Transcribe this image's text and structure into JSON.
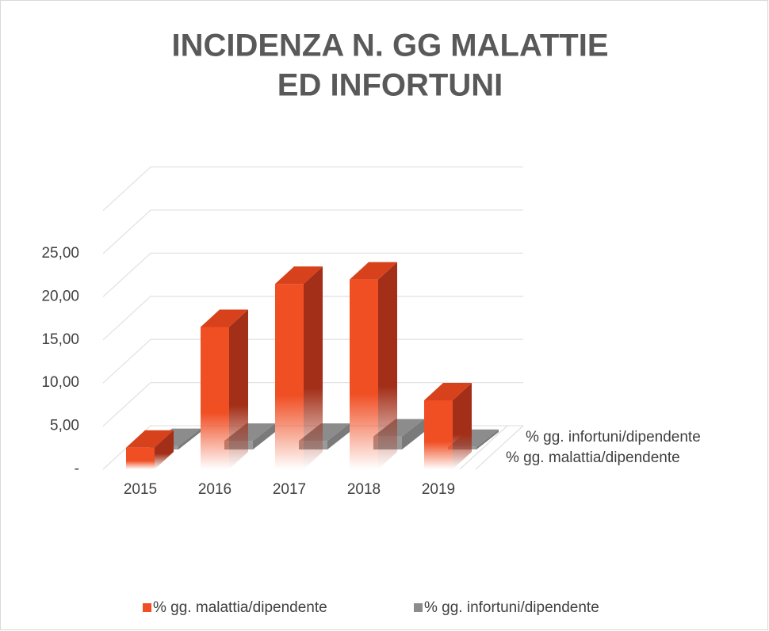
{
  "chart_data": {
    "type": "bar3d",
    "title": [
      "INCIDENZA N. GG MALATTIE",
      "ED INFORTUNI"
    ],
    "categories": [
      "2015",
      "2016",
      "2017",
      "2018",
      "2019"
    ],
    "series": [
      {
        "name": "% gg. malattia/dipendente",
        "color": "#f04e23",
        "values": [
          2.5,
          16.5,
          21.5,
          22.0,
          8.0
        ]
      },
      {
        "name": "% gg. infortuni/dipendente",
        "color": "#8c8c8c",
        "values": [
          0.4,
          1.0,
          1.0,
          1.5,
          0.3
        ]
      }
    ],
    "ylim": [
      0,
      30
    ],
    "yticks": [
      {
        "value": 0,
        "label": "-"
      },
      {
        "value": 5,
        "label": "5,00"
      },
      {
        "value": 10,
        "label": "10,00"
      },
      {
        "value": 15,
        "label": "15,00"
      },
      {
        "value": 20,
        "label": "20,00"
      },
      {
        "value": 25,
        "label": "25,00"
      }
    ],
    "grid": true,
    "legend": "bottom"
  }
}
